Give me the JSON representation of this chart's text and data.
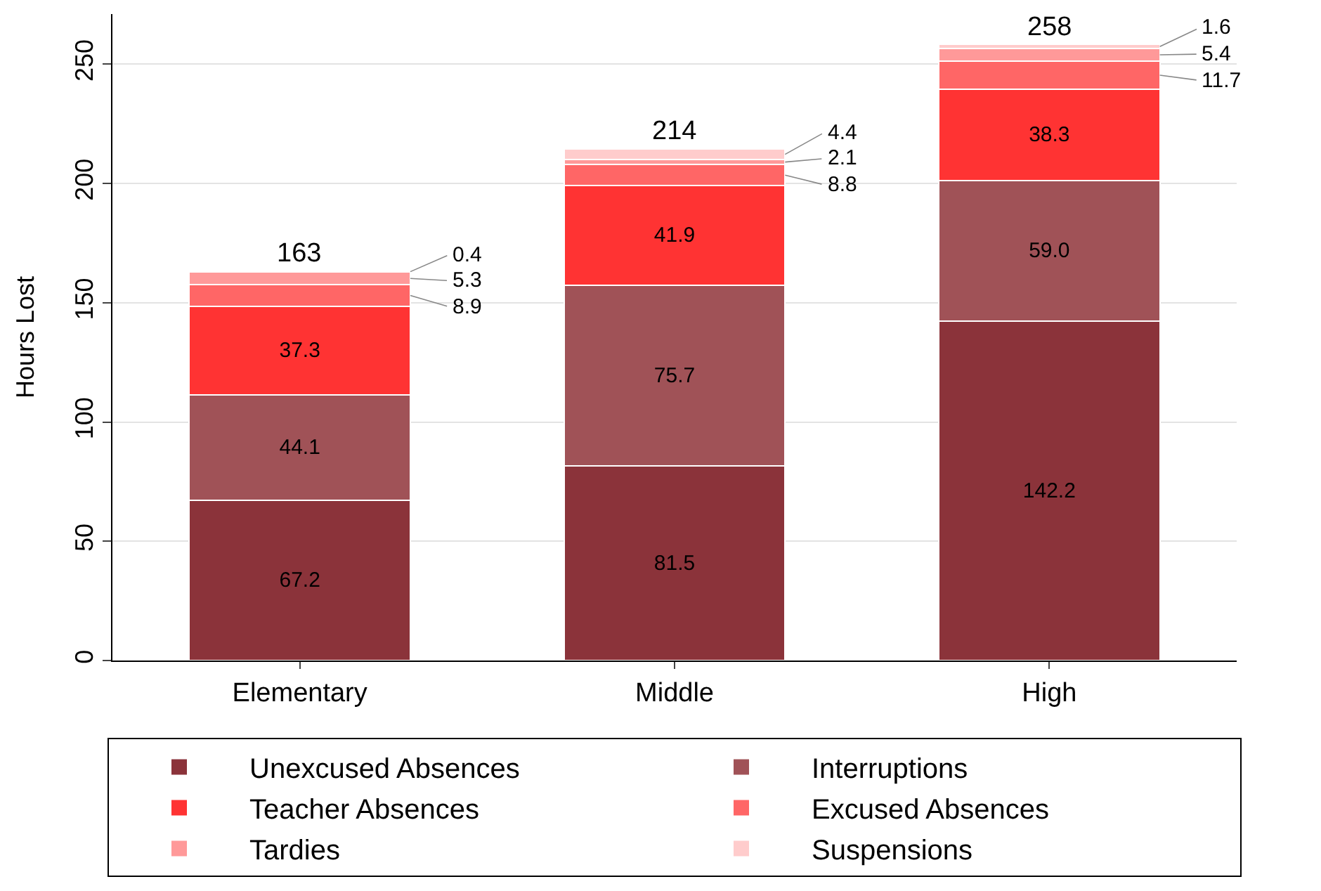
{
  "chart_data": {
    "type": "bar",
    "stacked": true,
    "ylabel": "Hours Lost",
    "categories": [
      "Elementary",
      "Middle",
      "High"
    ],
    "series": [
      {
        "name": "Unexcused Absences",
        "color": "#8b333a",
        "values": [
          67.2,
          81.5,
          142.2
        ],
        "value_labels": [
          "67.2",
          "81.5",
          "142.2"
        ]
      },
      {
        "name": "Interruptions",
        "color": "#a05257",
        "values": [
          44.1,
          75.7,
          59.0
        ],
        "value_labels": [
          "44.1",
          "75.7",
          "59.0"
        ]
      },
      {
        "name": "Teacher Absences",
        "color": "#ff3333",
        "values": [
          37.3,
          41.9,
          38.3
        ],
        "value_labels": [
          "37.3",
          "41.9",
          "38.3"
        ]
      },
      {
        "name": "Excused Absences",
        "color": "#ff6666",
        "values": [
          8.9,
          8.8,
          11.7
        ],
        "value_labels": [
          "8.9",
          "8.8",
          "11.7"
        ]
      },
      {
        "name": "Tardies",
        "color": "#ff9999",
        "values": [
          5.3,
          2.1,
          5.4
        ],
        "value_labels": [
          "5.3",
          "2.1",
          "5.4"
        ]
      },
      {
        "name": "Suspensions",
        "color": "#ffcccc",
        "values": [
          0.4,
          4.4,
          1.6
        ],
        "value_labels": [
          "0.4",
          "4.4",
          "1.6"
        ]
      }
    ],
    "totals": [
      "163",
      "214",
      "258"
    ],
    "ylim": [
      0,
      271
    ],
    "yticks": [
      0,
      50,
      100,
      150,
      200,
      250
    ],
    "grid": "y",
    "legend": "bottom"
  }
}
